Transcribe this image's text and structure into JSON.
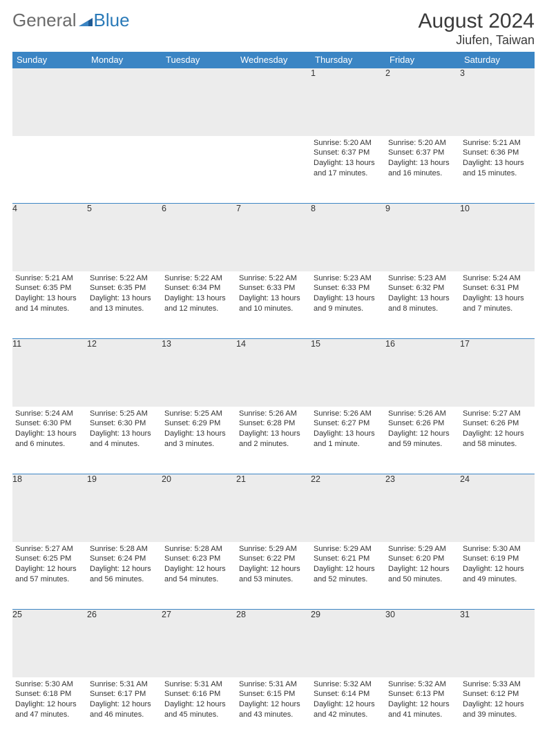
{
  "logo": {
    "general": "General",
    "blue": "Blue"
  },
  "title": {
    "month": "August 2024",
    "location": "Jiufen, Taiwan"
  },
  "theme": {
    "header_bg": "#3b85c4",
    "header_text": "#ffffff",
    "daynum_bg": "#ececec",
    "border": "#3b85c4",
    "body_text": "#333333",
    "logo_gray": "#6b6b6b",
    "logo_blue": "#2a7ab8"
  },
  "weekdays": [
    "Sunday",
    "Monday",
    "Tuesday",
    "Wednesday",
    "Thursday",
    "Friday",
    "Saturday"
  ],
  "weeks": [
    {
      "nums": [
        "",
        "",
        "",
        "",
        "1",
        "2",
        "3"
      ],
      "cells": [
        null,
        null,
        null,
        null,
        {
          "sunrise": "Sunrise: 5:20 AM",
          "sunset": "Sunset: 6:37 PM",
          "day1": "Daylight: 13 hours",
          "day2": "and 17 minutes."
        },
        {
          "sunrise": "Sunrise: 5:20 AM",
          "sunset": "Sunset: 6:37 PM",
          "day1": "Daylight: 13 hours",
          "day2": "and 16 minutes."
        },
        {
          "sunrise": "Sunrise: 5:21 AM",
          "sunset": "Sunset: 6:36 PM",
          "day1": "Daylight: 13 hours",
          "day2": "and 15 minutes."
        }
      ]
    },
    {
      "nums": [
        "4",
        "5",
        "6",
        "7",
        "8",
        "9",
        "10"
      ],
      "cells": [
        {
          "sunrise": "Sunrise: 5:21 AM",
          "sunset": "Sunset: 6:35 PM",
          "day1": "Daylight: 13 hours",
          "day2": "and 14 minutes."
        },
        {
          "sunrise": "Sunrise: 5:22 AM",
          "sunset": "Sunset: 6:35 PM",
          "day1": "Daylight: 13 hours",
          "day2": "and 13 minutes."
        },
        {
          "sunrise": "Sunrise: 5:22 AM",
          "sunset": "Sunset: 6:34 PM",
          "day1": "Daylight: 13 hours",
          "day2": "and 12 minutes."
        },
        {
          "sunrise": "Sunrise: 5:22 AM",
          "sunset": "Sunset: 6:33 PM",
          "day1": "Daylight: 13 hours",
          "day2": "and 10 minutes."
        },
        {
          "sunrise": "Sunrise: 5:23 AM",
          "sunset": "Sunset: 6:33 PM",
          "day1": "Daylight: 13 hours",
          "day2": "and 9 minutes."
        },
        {
          "sunrise": "Sunrise: 5:23 AM",
          "sunset": "Sunset: 6:32 PM",
          "day1": "Daylight: 13 hours",
          "day2": "and 8 minutes."
        },
        {
          "sunrise": "Sunrise: 5:24 AM",
          "sunset": "Sunset: 6:31 PM",
          "day1": "Daylight: 13 hours",
          "day2": "and 7 minutes."
        }
      ]
    },
    {
      "nums": [
        "11",
        "12",
        "13",
        "14",
        "15",
        "16",
        "17"
      ],
      "cells": [
        {
          "sunrise": "Sunrise: 5:24 AM",
          "sunset": "Sunset: 6:30 PM",
          "day1": "Daylight: 13 hours",
          "day2": "and 6 minutes."
        },
        {
          "sunrise": "Sunrise: 5:25 AM",
          "sunset": "Sunset: 6:30 PM",
          "day1": "Daylight: 13 hours",
          "day2": "and 4 minutes."
        },
        {
          "sunrise": "Sunrise: 5:25 AM",
          "sunset": "Sunset: 6:29 PM",
          "day1": "Daylight: 13 hours",
          "day2": "and 3 minutes."
        },
        {
          "sunrise": "Sunrise: 5:26 AM",
          "sunset": "Sunset: 6:28 PM",
          "day1": "Daylight: 13 hours",
          "day2": "and 2 minutes."
        },
        {
          "sunrise": "Sunrise: 5:26 AM",
          "sunset": "Sunset: 6:27 PM",
          "day1": "Daylight: 13 hours",
          "day2": "and 1 minute."
        },
        {
          "sunrise": "Sunrise: 5:26 AM",
          "sunset": "Sunset: 6:26 PM",
          "day1": "Daylight: 12 hours",
          "day2": "and 59 minutes."
        },
        {
          "sunrise": "Sunrise: 5:27 AM",
          "sunset": "Sunset: 6:26 PM",
          "day1": "Daylight: 12 hours",
          "day2": "and 58 minutes."
        }
      ]
    },
    {
      "nums": [
        "18",
        "19",
        "20",
        "21",
        "22",
        "23",
        "24"
      ],
      "cells": [
        {
          "sunrise": "Sunrise: 5:27 AM",
          "sunset": "Sunset: 6:25 PM",
          "day1": "Daylight: 12 hours",
          "day2": "and 57 minutes."
        },
        {
          "sunrise": "Sunrise: 5:28 AM",
          "sunset": "Sunset: 6:24 PM",
          "day1": "Daylight: 12 hours",
          "day2": "and 56 minutes."
        },
        {
          "sunrise": "Sunrise: 5:28 AM",
          "sunset": "Sunset: 6:23 PM",
          "day1": "Daylight: 12 hours",
          "day2": "and 54 minutes."
        },
        {
          "sunrise": "Sunrise: 5:29 AM",
          "sunset": "Sunset: 6:22 PM",
          "day1": "Daylight: 12 hours",
          "day2": "and 53 minutes."
        },
        {
          "sunrise": "Sunrise: 5:29 AM",
          "sunset": "Sunset: 6:21 PM",
          "day1": "Daylight: 12 hours",
          "day2": "and 52 minutes."
        },
        {
          "sunrise": "Sunrise: 5:29 AM",
          "sunset": "Sunset: 6:20 PM",
          "day1": "Daylight: 12 hours",
          "day2": "and 50 minutes."
        },
        {
          "sunrise": "Sunrise: 5:30 AM",
          "sunset": "Sunset: 6:19 PM",
          "day1": "Daylight: 12 hours",
          "day2": "and 49 minutes."
        }
      ]
    },
    {
      "nums": [
        "25",
        "26",
        "27",
        "28",
        "29",
        "30",
        "31"
      ],
      "cells": [
        {
          "sunrise": "Sunrise: 5:30 AM",
          "sunset": "Sunset: 6:18 PM",
          "day1": "Daylight: 12 hours",
          "day2": "and 47 minutes."
        },
        {
          "sunrise": "Sunrise: 5:31 AM",
          "sunset": "Sunset: 6:17 PM",
          "day1": "Daylight: 12 hours",
          "day2": "and 46 minutes."
        },
        {
          "sunrise": "Sunrise: 5:31 AM",
          "sunset": "Sunset: 6:16 PM",
          "day1": "Daylight: 12 hours",
          "day2": "and 45 minutes."
        },
        {
          "sunrise": "Sunrise: 5:31 AM",
          "sunset": "Sunset: 6:15 PM",
          "day1": "Daylight: 12 hours",
          "day2": "and 43 minutes."
        },
        {
          "sunrise": "Sunrise: 5:32 AM",
          "sunset": "Sunset: 6:14 PM",
          "day1": "Daylight: 12 hours",
          "day2": "and 42 minutes."
        },
        {
          "sunrise": "Sunrise: 5:32 AM",
          "sunset": "Sunset: 6:13 PM",
          "day1": "Daylight: 12 hours",
          "day2": "and 41 minutes."
        },
        {
          "sunrise": "Sunrise: 5:33 AM",
          "sunset": "Sunset: 6:12 PM",
          "day1": "Daylight: 12 hours",
          "day2": "and 39 minutes."
        }
      ]
    }
  ]
}
